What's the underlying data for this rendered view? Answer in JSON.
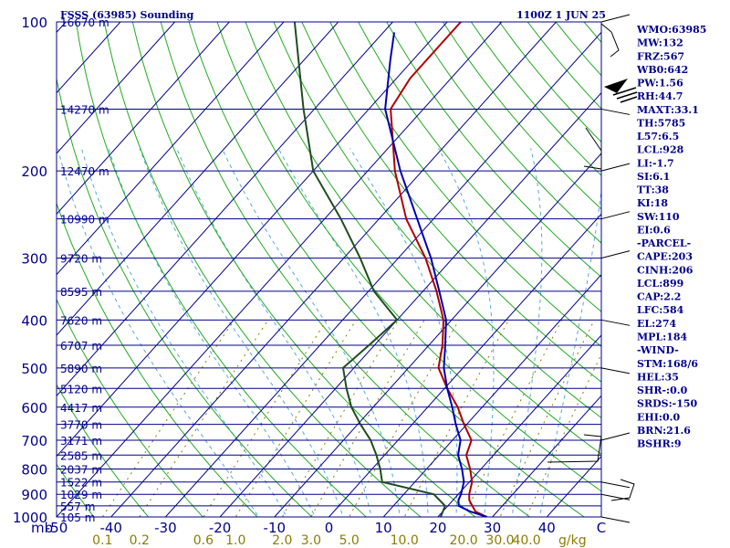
{
  "header": {
    "station": "FSSS (63985) Sounding",
    "time": "1100Z  1 JUN 25"
  },
  "indices": [
    "WMO:63985",
    "MW:132",
    "FRZ:567",
    "WB0:642",
    "PW:1.56",
    "RH:44.7",
    "MAXT:33.1",
    "TH:5785",
    "L57:6.5",
    "LCL:928",
    "LI:-1.7",
    "SI:6.1",
    "TT:38",
    "KI:18",
    "SW:110",
    "EI:0.6",
    "-PARCEL-",
    "CAPE:203",
    "CINH:206",
    "LCL:899",
    "CAP:2.2",
    "LFC:584",
    "EL:274",
    "MPL:184",
    "-WIND-",
    "STM:168/6",
    "HEL:35",
    "SHR-:0.0",
    "SRDS:-150",
    "EHI:0.0",
    "BRN:21.6",
    "BSHR:9"
  ],
  "colors": {
    "frame": "#00008b",
    "isobar": "#00008b",
    "isotherm": "#00008b",
    "dry_adiabat": "#22aa22",
    "moist_adiabat": "#55aadd",
    "mixing_ratio": "#8b7d00",
    "temperature": "#b00000",
    "dewpoint": "#1f4d1f",
    "virtual_temp": "#0000b0",
    "hodograph": "#000000"
  },
  "chart_data": {
    "type": "line",
    "title": "",
    "xlabel": "",
    "ylabel": "mb",
    "skew_t": true,
    "pressure_scale": "log",
    "xlim": [
      -50,
      50
    ],
    "ylim": [
      1000,
      100
    ],
    "pressure_levels": [
      {
        "p": 100,
        "label": "100",
        "height": "16670 m"
      },
      {
        "p": 150,
        "label": "",
        "height": "14270 m"
      },
      {
        "p": 200,
        "label": "200",
        "height": "12470 m"
      },
      {
        "p": 250,
        "label": "",
        "height": "10990 m"
      },
      {
        "p": 300,
        "label": "300",
        "height": "9720 m"
      },
      {
        "p": 350,
        "label": "",
        "height": "8595 m"
      },
      {
        "p": 400,
        "label": "400",
        "height": "7620 m"
      },
      {
        "p": 450,
        "label": "",
        "height": "6707 m"
      },
      {
        "p": 500,
        "label": "500",
        "height": "5890 m"
      },
      {
        "p": 550,
        "label": "",
        "height": "5120 m"
      },
      {
        "p": 600,
        "label": "600",
        "height": "4417 m"
      },
      {
        "p": 650,
        "label": "",
        "height": "3770 m"
      },
      {
        "p": 700,
        "label": "700",
        "height": "3171 m"
      },
      {
        "p": 750,
        "label": "",
        "height": "2585 m"
      },
      {
        "p": 800,
        "label": "800",
        "height": "2037 m"
      },
      {
        "p": 850,
        "label": "",
        "height": "1522 m"
      },
      {
        "p": 900,
        "label": "900",
        "height": "1029 m"
      },
      {
        "p": 950,
        "label": "",
        "height": "557 m"
      },
      {
        "p": 1000,
        "label": "1000",
        "height": "105 m"
      }
    ],
    "temperature_ticks": [
      "-50",
      "-40",
      "-30",
      "-20",
      "-10",
      "0",
      "10",
      "20",
      "30",
      "40",
      "C"
    ],
    "mixing_ratio_ticks": [
      {
        "w": 0.1,
        "label": "0.1"
      },
      {
        "w": 0.2,
        "label": "0.2"
      },
      {
        "w": 0.6,
        "label": "0.6"
      },
      {
        "w": 1.0,
        "label": "1.0"
      },
      {
        "w": 2.0,
        "label": "2.0"
      },
      {
        "w": 3.0,
        "label": "3.0"
      },
      {
        "w": 5.0,
        "label": "5.0"
      },
      {
        "w": 10.0,
        "label": "10.0"
      },
      {
        "w": 20.0,
        "label": "20.0"
      },
      {
        "w": 30.0,
        "label": "30.0"
      },
      {
        "w": 40.0,
        "label": "40.0"
      }
    ],
    "mixing_ratio_unit": "g/kg",
    "series": [
      {
        "key": "temperature",
        "points": [
          [
            1000,
            29
          ],
          [
            975,
            26
          ],
          [
            950,
            24.5
          ],
          [
            925,
            23
          ],
          [
            900,
            22
          ],
          [
            850,
            20.5
          ],
          [
            800,
            18
          ],
          [
            750,
            15
          ],
          [
            700,
            13.5
          ],
          [
            650,
            9.5
          ],
          [
            600,
            5.5
          ],
          [
            550,
            0.5
          ],
          [
            500,
            -4.5
          ],
          [
            450,
            -7.5
          ],
          [
            400,
            -11.5
          ],
          [
            350,
            -17.5
          ],
          [
            300,
            -25
          ],
          [
            250,
            -35
          ],
          [
            200,
            -45
          ],
          [
            150,
            -56
          ],
          [
            130,
            -57.5
          ],
          [
            100,
            -57.5
          ]
        ]
      },
      {
        "key": "dewpoint",
        "points": [
          [
            1000,
            20.5
          ],
          [
            975,
            20
          ],
          [
            950,
            19.5
          ],
          [
            900,
            15.5
          ],
          [
            850,
            4
          ],
          [
            800,
            1.5
          ],
          [
            750,
            -1.5
          ],
          [
            700,
            -5
          ],
          [
            650,
            -9.5
          ],
          [
            600,
            -14
          ],
          [
            550,
            -18
          ],
          [
            500,
            -22
          ],
          [
            450,
            -21
          ],
          [
            400,
            -20
          ],
          [
            350,
            -29
          ],
          [
            300,
            -37
          ],
          [
            250,
            -47
          ],
          [
            200,
            -60
          ],
          [
            150,
            -72
          ],
          [
            100,
            -88
          ]
        ]
      },
      {
        "key": "virtual_temp",
        "points": [
          [
            1000,
            29
          ],
          [
            975,
            25
          ],
          [
            950,
            22
          ],
          [
            925,
            21
          ],
          [
            900,
            20.5
          ],
          [
            850,
            19
          ],
          [
            800,
            16.5
          ],
          [
            750,
            13.5
          ],
          [
            700,
            11.5
          ],
          [
            650,
            8
          ],
          [
            600,
            4.5
          ],
          [
            550,
            0.5
          ],
          [
            500,
            -3.5
          ],
          [
            450,
            -7
          ],
          [
            400,
            -11
          ],
          [
            350,
            -17
          ],
          [
            300,
            -24
          ],
          [
            250,
            -33
          ],
          [
            200,
            -44
          ],
          [
            150,
            -57
          ],
          [
            120,
            -64
          ],
          [
            105,
            -68
          ]
        ]
      }
    ]
  }
}
